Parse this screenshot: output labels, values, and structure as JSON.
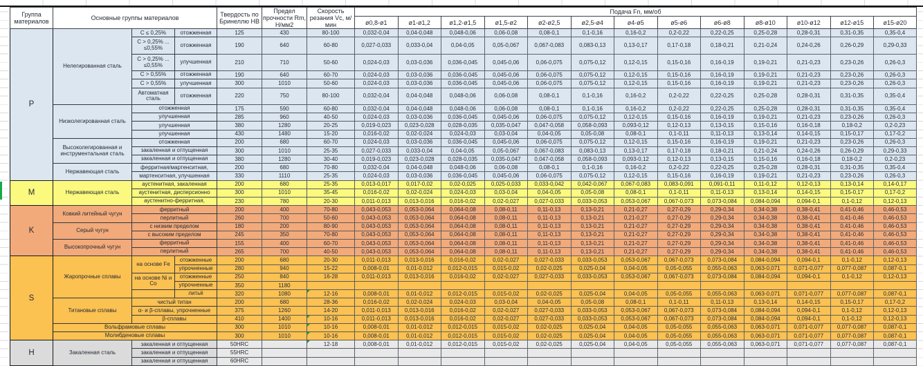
{
  "colors": {
    "p": "#DCE6F1",
    "m": "#FBF97E",
    "k": "#F2AA7A",
    "s": "#FBC151",
    "h": "#DBDBDB",
    "marker": "#17A84B"
  },
  "header": {
    "group": "Группа материалов",
    "main_groups": "Основные группы материалов",
    "hardness": "Твердость по Бринеллю НВ",
    "strength": "Предел прочности Rm, Н/мм2",
    "speed": "Скорость резания Vc, м/мин",
    "feed": "Подача Fn, мм/об",
    "feed_cols": [
      "ø0,8-ø1",
      "ø1-ø1,2",
      "ø1,2-ø1,5",
      "ø1,5-ø2",
      "ø2-ø2,5",
      "ø2,5-ø4",
      "ø4-ø5",
      "ø5-ø6",
      "ø6-ø8",
      "ø8-ø10",
      "ø10-ø12",
      "ø12-ø15",
      "ø15-ø20"
    ]
  },
  "rows": [
    {
      "g": "p",
      "letter": "P",
      "letter_rs": 15,
      "cells": [
        {
          "t": "Нелегированная сталь",
          "rs": 6
        },
        {
          "t": "C ≤ 0,25%"
        },
        {
          "t": "отожженная"
        }
      ],
      "hb": "125",
      "rm": "430",
      "vc": "80-100",
      "feeds": [
        "0,032-0,04",
        "0,04-0,048",
        "0,048-0,06",
        "0,06-0,08",
        "0,08-0,1",
        "0,1-0,16",
        "0,16-0,2",
        "0,2-0,22",
        "0,22-0,25",
        "0,25-0,28",
        "0,28-0,31",
        "0,31-0,35",
        "0,35-0,4"
      ]
    },
    {
      "g": "p",
      "tall": true,
      "cells": [
        {
          "t": "C > 0,25% ... ≤0,55%"
        },
        {
          "t": "отожженная"
        }
      ],
      "hb": "190",
      "rm": "640",
      "vc": "60-80",
      "feeds": [
        "0,027-0,033",
        "0,033-0,04",
        "0,04-0,05",
        "0,05-0,067",
        "0,067-0,083",
        "0,083-0,13",
        "0,13-0,17",
        "0,17-0,18",
        "0,18-0,21",
        "0,21-0,24",
        "0,24-0,26",
        "0,26-0,29",
        "0,29-0,33"
      ]
    },
    {
      "g": "p",
      "tall": true,
      "cells": [
        {
          "t": "C > 0,25% ... ≤0,55%"
        },
        {
          "t": "улучшенная"
        }
      ],
      "hb": "210",
      "rm": "710",
      "vc": "50-60",
      "feeds": [
        "0,024-0,03",
        "0,03-0,036",
        "0,036-0,045",
        "0,045-0,06",
        "0,06-0,075",
        "0,075-0,12",
        "0,12-0,15",
        "0,15-0,16",
        "0,16-0,19",
        "0,19-0,21",
        "0,21-0,23",
        "0,23-0,26",
        "0,26-0,3"
      ]
    },
    {
      "g": "p",
      "cells": [
        {
          "t": "C > 0,55%"
        },
        {
          "t": "отожженная"
        }
      ],
      "hb": "190",
      "rm": "640",
      "vc": "60-70",
      "feeds": [
        "0,024-0,03",
        "0,03-0,036",
        "0,036-0,045",
        "0,045-0,06",
        "0,06-0,075",
        "0,075-0,12",
        "0,12-0,15",
        "0,15-0,16",
        "0,16-0,19",
        "0,19-0,21",
        "0,21-0,23",
        "0,23-0,26",
        "0,26-0,3"
      ]
    },
    {
      "g": "p",
      "cells": [
        {
          "t": "C > 0,55%"
        },
        {
          "t": "улучшенная"
        }
      ],
      "hb": "300",
      "rm": "1010",
      "vc": "50-60",
      "feeds": [
        "0,024-0,03",
        "0,03-0,036",
        "0,036-0,045",
        "0,045-0,06",
        "0,06-0,075",
        "0,075-0,12",
        "0,12-0,15",
        "0,15-0,16",
        "0,16-0,19",
        "0,19-0,21",
        "0,21-0,23",
        "0,23-0,26",
        "0,26-0,3"
      ]
    },
    {
      "g": "p",
      "tall": true,
      "cells": [
        {
          "t": "Автоматная сталь"
        },
        {
          "t": "отожженная"
        }
      ],
      "hb": "220",
      "rm": "750",
      "vc": "80-100",
      "feeds": [
        "0,032-0,04",
        "0,04-0,048",
        "0,048-0,06",
        "0,06-0,08",
        "0,08-0,1",
        "0,1-0,16",
        "0,16-0,2",
        "0,2-0,22",
        "0,22-0,25",
        "0,25-0,28",
        "0,28-0,31",
        "0,31-0,35",
        "0,35-0,4"
      ]
    },
    {
      "g": "p",
      "cells": [
        {
          "t": "Низколегированная сталь",
          "rs": 4
        },
        {
          "t": "отожженная",
          "cs": 2
        }
      ],
      "hb": "175",
      "rm": "590",
      "vc": "60-80",
      "feeds": [
        "0,032-0,04",
        "0,04-0,048",
        "0,048-0,06",
        "0,06-0,08",
        "0,08-0,1",
        "0,1-0,16",
        "0,16-0,2",
        "0,2-0,22",
        "0,22-0,25",
        "0,25-0,28",
        "0,28-0,31",
        "0,31-0,35",
        "0,35-0,4"
      ]
    },
    {
      "g": "p",
      "cells": [
        {
          "t": "улучшенная",
          "cs": 2
        }
      ],
      "hb": "285",
      "rm": "960",
      "vc": "40-50",
      "feeds": [
        "0,024-0,03",
        "0,03-0,036",
        "0,036-0,045",
        "0,045-0,06",
        "0,06-0,075",
        "0,075-0,12",
        "0,12-0,15",
        "0,15-0,16",
        "0,16-0,19",
        "0,19-0,21",
        "0,21-0,23",
        "0,23-0,26",
        "0,26-0,3"
      ]
    },
    {
      "g": "p",
      "cells": [
        {
          "t": "улучшенная",
          "cs": 2
        }
      ],
      "hb": "380",
      "rm": "1280",
      "vc": "20-25",
      "feeds": [
        "0,019-0,023",
        "0,023-0,028",
        "0,028-0,035",
        "0,035-0,047",
        "0,047-0,058",
        "0,058-0,093",
        "0,093-0,12",
        "0,12-0,13",
        "0,13-0,15",
        "0,15-0,16",
        "0,16-0,18",
        "0,18-0,2",
        "0,2-0,23"
      ]
    },
    {
      "g": "p",
      "cells": [
        {
          "t": "улучшенная",
          "cs": 2
        }
      ],
      "hb": "430",
      "rm": "1480",
      "vc": "15-20",
      "feeds": [
        "0,016-0,02",
        "0,02-0,024",
        "0,024-0,03",
        "0,03-0,04",
        "0,04-0,05",
        "0,05-0,08",
        "0,08-0,1",
        "0,1-0,11",
        "0,11-0,13",
        "0,13-0,14",
        "0,14-0,15",
        "0,15-0,17",
        "0,17-0,2"
      ]
    },
    {
      "g": "p",
      "cells": [
        {
          "t": "Высоколегированная и инструментальная сталь",
          "rs": 3
        },
        {
          "t": "отожженная",
          "cs": 2
        }
      ],
      "hb": "200",
      "rm": "680",
      "vc": "60-70",
      "feeds": [
        "0,024-0,03",
        "0,03-0,036",
        "0,036-0,045",
        "0,045-0,06",
        "0,06-0,075",
        "0,075-0,12",
        "0,12-0,15",
        "0,15-0,16",
        "0,16-0,19",
        "0,19-0,21",
        "0,21-0,23",
        "0,23-0,26",
        "0,26-0,3"
      ]
    },
    {
      "g": "p",
      "cells": [
        {
          "t": "закаленная и отпущенная",
          "cs": 2
        }
      ],
      "hb": "300",
      "rm": "1010",
      "vc": "25-35",
      "feeds": [
        "0,027-0,033",
        "0,033-0,04",
        "0,04-0,05",
        "0,05-0,067",
        "0,067-0,083",
        "0,083-0,13",
        "0,13-0,17",
        "0,17-0,18",
        "0,18-0,21",
        "0,21-0,24",
        "0,24-0,26",
        "0,26-0,29",
        "0,29-0,33"
      ]
    },
    {
      "g": "p",
      "cells": [
        {
          "t": "закаленная и отпущенная",
          "cs": 2
        }
      ],
      "hb": "380",
      "rm": "1280",
      "vc": "30-40",
      "feeds": [
        "0,019-0,023",
        "0,023-0,028",
        "0,028-0,035",
        "0,035-0,047",
        "0,047-0,058",
        "0,058-0,093",
        "0,093-0,12",
        "0,12-0,13",
        "0,13-0,15",
        "0,15-0,16",
        "0,16-0,18",
        "0,18-0,2",
        "0,2-0,23"
      ]
    },
    {
      "g": "p",
      "cells": [
        {
          "t": "Нержавеющая сталь",
          "rs": 2
        },
        {
          "t": "ферритная/мартенситная,",
          "cs": 2
        }
      ],
      "hb": "200",
      "rm": "680",
      "vc": "70-80",
      "feeds": [
        "0,032-0,04",
        "0,04-0,048",
        "0,048-0,06",
        "0,06-0,08",
        "0,08-0,1",
        "0,1-0,16",
        "0,16-0,2",
        "0,2-0,22",
        "0,22-0,25",
        "0,25-0,28",
        "0,28-0,31",
        "0,31-0,35",
        "0,35-0,4"
      ]
    },
    {
      "g": "p",
      "cells": [
        {
          "t": "мартенситная, улучшенная",
          "cs": 2
        }
      ],
      "hb": "330",
      "rm": "1110",
      "vc": "25-35",
      "feeds": [
        "0,024-0,03",
        "0,03-0,036",
        "0,036-0,045",
        "0,045-0,06",
        "0,06-0,075",
        "0,075-0,12",
        "0,12-0,15",
        "0,15-0,16",
        "0,16-0,19",
        "0,19-0,21",
        "0,21-0,23",
        "0,23-0,26",
        "0,26-0,3"
      ]
    },
    {
      "g": "m",
      "letter": "M",
      "letter_rs": 3,
      "cells": [
        {
          "t": "Нержавеющая сталь",
          "rs": 3
        },
        {
          "t": "аустенитная, закаленная",
          "cs": 2
        }
      ],
      "hb": "200",
      "rm": "680",
      "vc": "25-35",
      "feeds": [
        "0,013-0,017",
        "0,017-0,02",
        "0,02-0,025",
        "0,025-0,033",
        "0,033-0,042",
        "0,042-0,067",
        "0,067-0,083",
        "0,083-0,091",
        "0,091-0,11",
        "0,11-0,12",
        "0,12-0,13",
        "0,13-0,14",
        "0,14-0,17"
      ]
    },
    {
      "g": "m",
      "cells": [
        {
          "t": "аустенитная, дисперсионно",
          "cs": 2
        }
      ],
      "hb": "300",
      "rm": "1010",
      "vc": "35-45",
      "feeds": [
        "0,016-0,02",
        "0,02-0,024",
        "0,024-0,03",
        "0,03-0,04",
        "0,04-0,05",
        "0,05-0,08",
        "0,08-0,1",
        "0,1-0,11",
        "0,11-0,13",
        "0,13-0,14",
        "0,14-0,15",
        "0,15-0,17",
        "0,17-0,2"
      ]
    },
    {
      "g": "m",
      "cells": [
        {
          "t": "аустенитно-ферритная,",
          "cs": 2
        }
      ],
      "hb": "230",
      "rm": "780",
      "vc": "20-30",
      "feeds": [
        "0,011-0,013",
        "0,013-0,016",
        "0,016-0,02",
        "0,02-0,027",
        "0,027-0,033",
        "0,033-0,053",
        "0,053-0,067",
        "0,067-0,073",
        "0,073-0,084",
        "0,084-0,094",
        "0,094-0,1",
        "0,1-0,12",
        "0,12-0,13"
      ]
    },
    {
      "g": "k",
      "letter": "K",
      "letter_rs": 6,
      "cells": [
        {
          "t": "Ковкий литейный чугун",
          "rs": 2
        },
        {
          "t": "ферритный",
          "cs": 2
        }
      ],
      "hb": "200",
      "rm": "400",
      "vc": "70-80",
      "feeds": [
        "0,043-0,053",
        "0,053-0,064",
        "0,064-0,08",
        "0,08-0,11",
        "0,11-0,13",
        "0,13-0,21",
        "0,21-0,27",
        "0,27-0,29",
        "0,29-0,34",
        "0,34-0,38",
        "0,38-0,41",
        "0,41-0,46",
        "0,46-0,53"
      ]
    },
    {
      "g": "k",
      "cells": [
        {
          "t": "перлитный",
          "cs": 2
        }
      ],
      "hb": "260",
      "rm": "700",
      "vc": "50-60",
      "feeds": [
        "0,043-0,053",
        "0,053-0,064",
        "0,064-0,08",
        "0,08-0,11",
        "0,11-0,13",
        "0,13-0,21",
        "0,21-0,27",
        "0,27-0,29",
        "0,29-0,34",
        "0,34-0,38",
        "0,38-0,41",
        "0,41-0,46",
        "0,46-0,53"
      ]
    },
    {
      "g": "k",
      "cells": [
        {
          "t": "Серый чугун",
          "rs": 2
        },
        {
          "t": "с низким пределом",
          "cs": 2
        }
      ],
      "hb": "180",
      "rm": "200",
      "vc": "80-90",
      "feeds": [
        "0,043-0,053",
        "0,053-0,064",
        "0,064-0,08",
        "0,08-0,11",
        "0,11-0,13",
        "0,13-0,21",
        "0,21-0,27",
        "0,27-0,29",
        "0,29-0,34",
        "0,34-0,38",
        "0,38-0,41",
        "0,41-0,46",
        "0,46-0,53"
      ]
    },
    {
      "g": "k",
      "cells": [
        {
          "t": "с высоким пределом",
          "cs": 2
        }
      ],
      "hb": "245",
      "rm": "350",
      "vc": "70-80",
      "feeds": [
        "0,043-0,053",
        "0,053-0,064",
        "0,064-0,08",
        "0,08-0,11",
        "0,11-0,13",
        "0,13-0,21",
        "0,21-0,27",
        "0,27-0,29",
        "0,29-0,34",
        "0,34-0,38",
        "0,38-0,41",
        "0,41-0,46",
        "0,46-0,53"
      ]
    },
    {
      "g": "k",
      "cells": [
        {
          "t": "Высокопрочный чугун",
          "rs": 2
        },
        {
          "t": "ферритный",
          "cs": 2
        }
      ],
      "hb": "155",
      "rm": "400",
      "vc": "60-70",
      "feeds": [
        "0,043-0,053",
        "0,053-0,064",
        "0,064-0,08",
        "0,08-0,11",
        "0,11-0,13",
        "0,13-0,21",
        "0,21-0,27",
        "0,27-0,29",
        "0,29-0,34",
        "0,34-0,38",
        "0,38-0,41",
        "0,41-0,46",
        "0,46-0,53"
      ]
    },
    {
      "g": "k",
      "cells": [
        {
          "t": "перлитный",
          "cs": 2
        }
      ],
      "hb": "265",
      "rm": "700",
      "vc": "40-50",
      "feeds": [
        "0,043-0,053",
        "0,053-0,064",
        "0,064-0,08",
        "0,08-0,11",
        "0,11-0,13",
        "0,13-0,21",
        "0,21-0,27",
        "0,27-0,29",
        "0,29-0,34",
        "0,34-0,38",
        "0,38-0,41",
        "0,41-0,46",
        "0,46-0,53"
      ]
    },
    {
      "g": "s",
      "letter": "S",
      "letter_rs": 10,
      "cells": [
        {
          "t": "Жаропрочные сплавы",
          "rs": 5
        },
        {
          "t": "на основе Fe",
          "rs": 2
        },
        {
          "t": "отожженные"
        }
      ],
      "hb": "200",
      "rm": "680",
      "vc": "20-30",
      "feeds": [
        "0,011-0,013",
        "0,013-0,016",
        "0,016-0,02",
        "0,02-0,027",
        "0,027-0,033",
        "0,033-0,053",
        "0,053-0,067",
        "0,067-0,073",
        "0,073-0,084",
        "0,084-0,094",
        "0,094-0,1",
        "0,1-0,12",
        "0,12-0,13"
      ]
    },
    {
      "g": "s",
      "cells": [
        {
          "t": "упрочненные"
        }
      ],
      "hb": "280",
      "rm": "940",
      "vc": "15-22",
      "feeds": [
        "0,008-0,01",
        "0,01-0,012",
        "0,012-0,015",
        "0,015-0,02",
        "0,02-0,025",
        "0,025-0,04",
        "0,04-0,05",
        "0,05-0,055",
        "0,055-0,063",
        "0,063-0,071",
        "0,071-0,077",
        "0,077-0,087",
        "0,087-0,1"
      ]
    },
    {
      "g": "s",
      "cells": [
        {
          "t": "на основе Ni и Со",
          "rs": 2
        },
        {
          "t": "отожженные"
        }
      ],
      "hb": "250",
      "rm": "840",
      "vc": "16-28",
      "feeds": [
        "0,011-0,013",
        "0,013-0,016",
        "0,016-0,02",
        "0,02-0,027",
        "0,027-0,033",
        "0,033-0,053",
        "0,053-0,067",
        "0,067-0,073",
        "0,073-0,084",
        "0,084-0,094",
        "0,094-0,1",
        "0,1-0,12",
        "0,12-0,13"
      ]
    },
    {
      "g": "s",
      "cells": [
        {
          "t": "упрочненные"
        }
      ],
      "hb": "350",
      "rm": "1180",
      "vc": "",
      "feeds": [
        "",
        "",
        "",
        "",
        "",
        "",
        "",
        "",
        "",
        "",
        "",
        "",
        ""
      ]
    },
    {
      "g": "s",
      "cells": [
        {
          "t": ""
        },
        {
          "t": "литьё"
        }
      ],
      "hb": "320",
      "rm": "1080",
      "vc": "12-16",
      "flag": true,
      "feeds": [
        "0,008-0,01",
        "0,01-0,012",
        "0,012-0,015",
        "0,015-0,02",
        "0,02-0,025",
        "0,025-0,04",
        "0,04-0,05",
        "0,05-0,055",
        "0,055-0,063",
        "0,063-0,071",
        "0,071-0,077",
        "0,077-0,087",
        "0,087-0,1"
      ]
    },
    {
      "g": "s",
      "cells": [
        {
          "t": "Титановые сплавы",
          "rs": 3
        },
        {
          "t": "чистый титан",
          "cs": 2
        }
      ],
      "hb": "200",
      "rm": "680",
      "vc": "28-36",
      "feeds": [
        "0,016-0,02",
        "0,02-0,024",
        "0,024-0,03",
        "0,03-0,04",
        "0,04-0,05",
        "0,05-0,08",
        "0,08-0,1",
        "0,1-0,11",
        "0,11-0,13",
        "0,13-0,14",
        "0,14-0,15",
        "0,15-0,17",
        "0,17-0,2"
      ]
    },
    {
      "g": "s",
      "cells": [
        {
          "t": "α- и β-сплавы, упрочненные",
          "cs": 2
        }
      ],
      "hb": "375",
      "rm": "1260",
      "vc": "14-20",
      "feeds": [
        "0,011-0,013",
        "0,013-0,016",
        "0,016-0,02",
        "0,02-0,027",
        "0,027-0,033",
        "0,033-0,053",
        "0,053-0,067",
        "0,067-0,073",
        "0,073-0,084",
        "0,084-0,094",
        "0,094-0,1",
        "0,1-0,12",
        "0,12-0,13"
      ]
    },
    {
      "g": "s",
      "cells": [
        {
          "t": "β-сплавы",
          "cs": 2
        }
      ],
      "hb": "410",
      "rm": "1400",
      "vc": "10-16",
      "flag": true,
      "feeds": [
        "0,011-0,013",
        "0,013-0,016",
        "0,016-0,02",
        "0,02-0,027",
        "0,027-0,033",
        "0,033-0,053",
        "0,053-0,067",
        "0,067-0,073",
        "0,073-0,084",
        "0,084-0,094",
        "0,094-0,1",
        "0,1-0,12",
        "0,12-0,13"
      ]
    },
    {
      "g": "s",
      "cells": [
        {
          "t": "Вольфрамовые сплавы",
          "cs": 3
        }
      ],
      "hb": "300",
      "rm": "1010",
      "vc": "10-16",
      "flag": true,
      "feeds": [
        "0,008-0,01",
        "0,01-0,012",
        "0,012-0,015",
        "0,015-0,02",
        "0,02-0,025",
        "0,025-0,04",
        "0,04-0,05",
        "0,05-0,055",
        "0,055-0,063",
        "0,063-0,071",
        "0,071-0,077",
        "0,077-0,087",
        "0,087-0,1"
      ]
    },
    {
      "g": "s",
      "cells": [
        {
          "t": "Молибденовые сплавы",
          "cs": 3
        }
      ],
      "hb": "300",
      "rm": "1010",
      "vc": "10-16",
      "flag": true,
      "feeds": [
        "0,008-0,01",
        "0,01-0,012",
        "0,012-0,015",
        "0,015-0,02",
        "0,02-0,025",
        "0,025-0,04",
        "0,04-0,05",
        "0,05-0,055",
        "0,055-0,063",
        "0,063-0,071",
        "0,071-0,077",
        "0,077-0,087",
        "0,087-0,1"
      ]
    },
    {
      "g": "h",
      "letter": "H",
      "letter_rs": 3,
      "cells": [
        {
          "t": "Закаленная сталь",
          "rs": 3
        },
        {
          "t": "закаленная и отпущенная",
          "cs": 2
        }
      ],
      "hb": "50HRC",
      "rm": "",
      "vc": "12-18",
      "flag": true,
      "feeds": [
        "0,008-0,01",
        "0,01-0,012",
        "0,012-0,015",
        "0,015-0,02",
        "0,02-0,025",
        "0,025-0,04",
        "0,04-0,05",
        "0,05-0,055",
        "0,055-0,063",
        "0,063-0,071",
        "0,071-0,077",
        "0,077-0,087",
        "0,087-0,1"
      ]
    },
    {
      "g": "h",
      "cells": [
        {
          "t": "закаленная и отпущенная",
          "cs": 2
        }
      ],
      "hb": "55HRC",
      "rm": "",
      "vc": "",
      "feeds": [
        "",
        "",
        "",
        "",
        "",
        "",
        "",
        "",
        "",
        "",
        "",
        "",
        ""
      ]
    },
    {
      "g": "h",
      "cells": [
        {
          "t": "закаленная и отпущенная",
          "cs": 2
        }
      ],
      "hb": "60HRC",
      "rm": "",
      "vc": "",
      "feeds": [
        "",
        "",
        "",
        "",
        "",
        "",
        "",
        "",
        "",
        "",
        "",
        "",
        ""
      ]
    }
  ]
}
